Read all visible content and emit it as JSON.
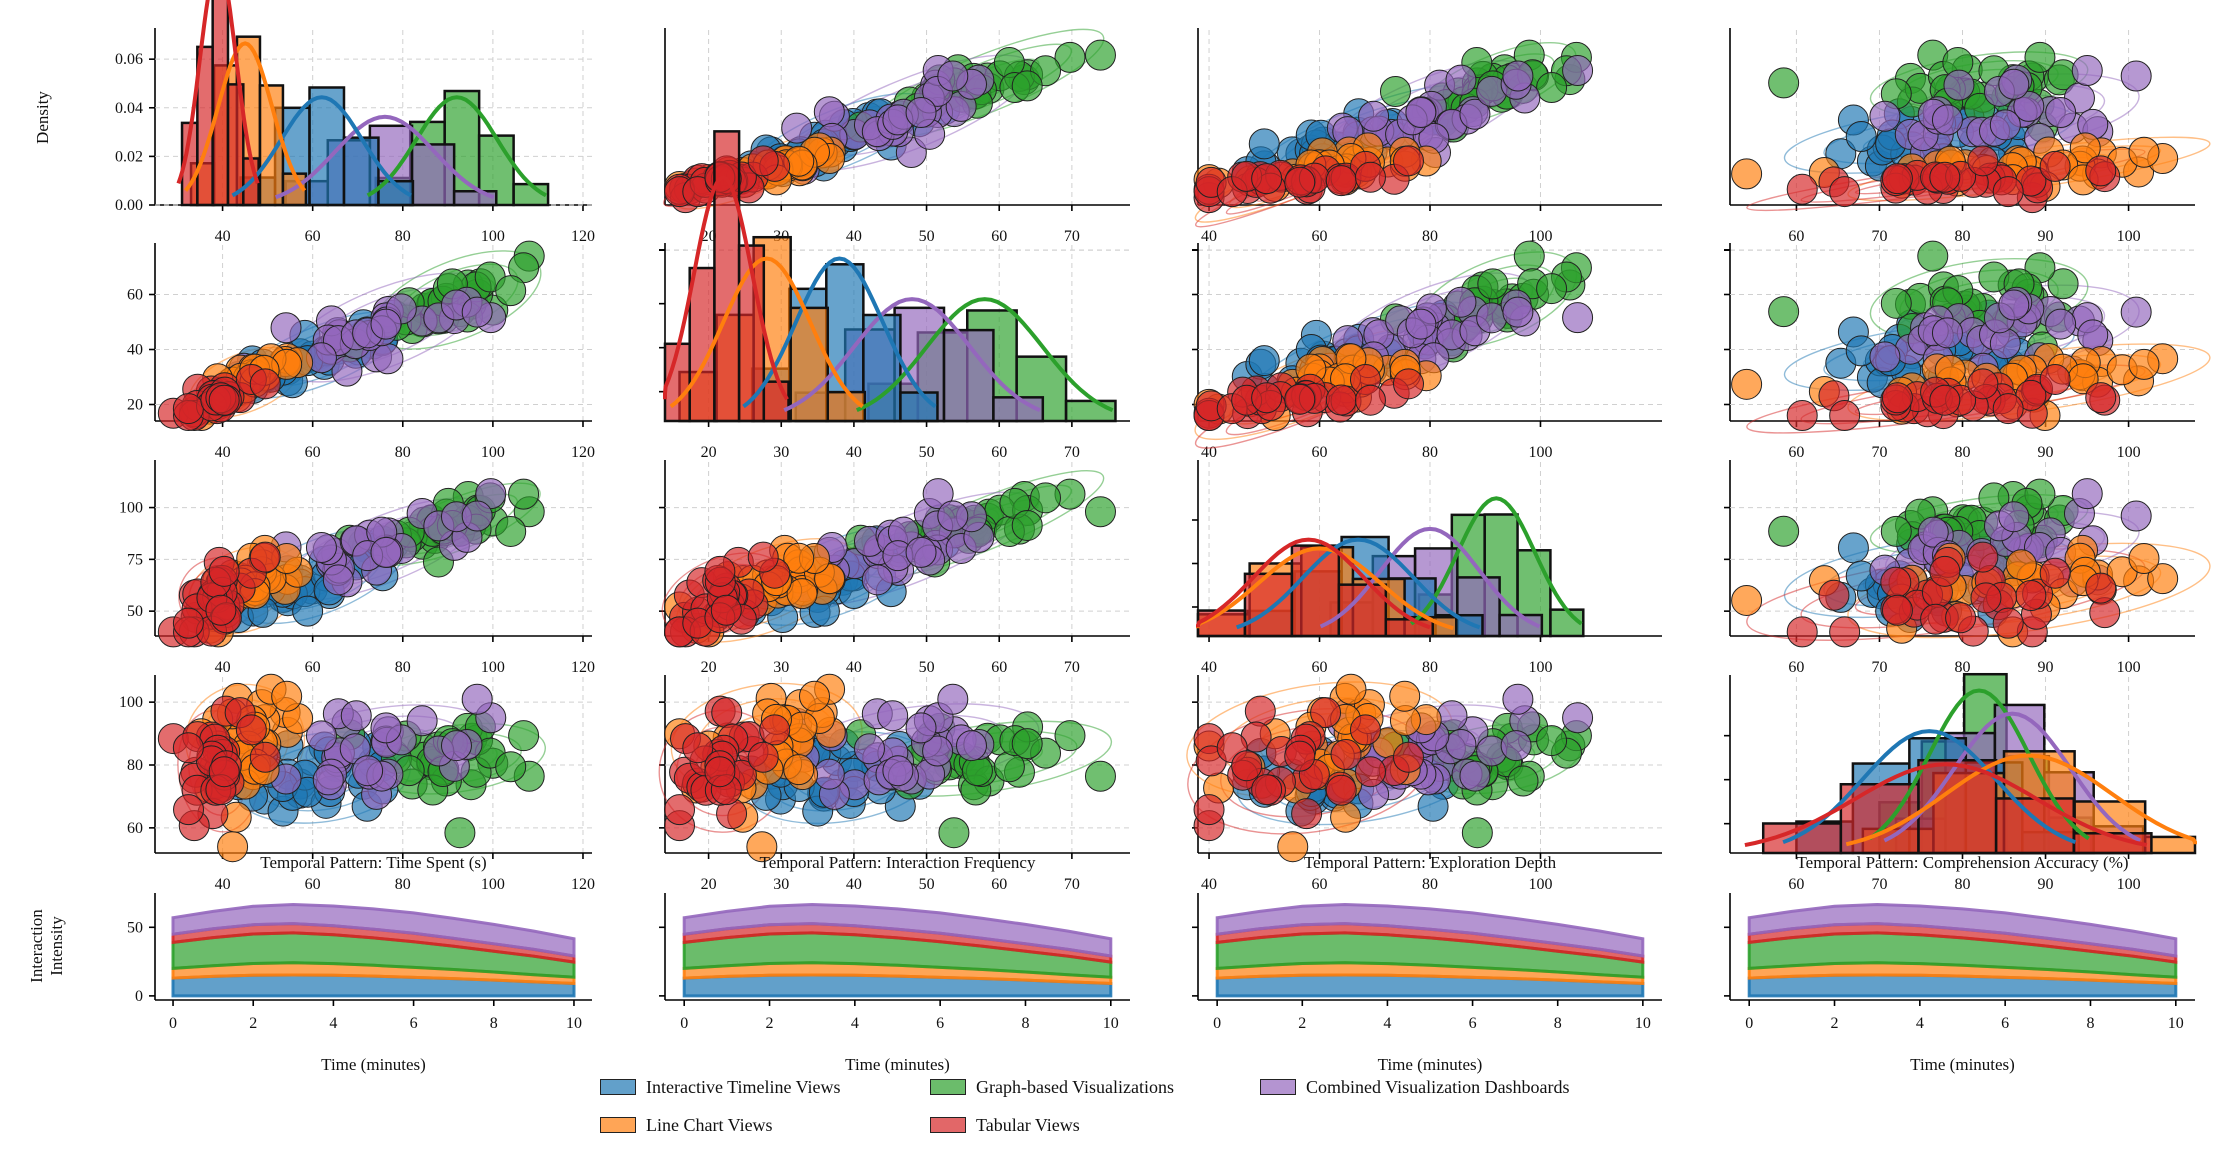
{
  "chart_data": {
    "type": "pairgrid",
    "variables": [
      "Time Spent (s)",
      "Interaction Frequency",
      "Exploration Depth",
      "Comprehension Accuracy (%)"
    ],
    "ranges": {
      "Time Spent (s)": [
        25,
        122
      ],
      "Interaction Frequency": [
        14,
        78
      ],
      "Exploration Depth": [
        38,
        122
      ],
      "Comprehension Accuracy (%)": [
        52,
        108
      ]
    },
    "tick_values": {
      "Time Spent (s)": [
        40,
        60,
        80,
        100,
        120
      ],
      "Interaction Frequency": [
        20,
        30,
        40,
        50,
        60,
        70
      ],
      "Exploration Depth": [
        40,
        60,
        80,
        100
      ],
      "Comprehension Accuracy (%)": [
        60,
        70,
        80,
        90,
        100
      ]
    },
    "row_tick_values": {
      "Time Spent (s)": [
        "0.00",
        "0.02",
        "0.04",
        "0.06"
      ],
      "Interaction Frequency": [
        "20",
        "40",
        "60"
      ],
      "Exploration Depth": [
        "50",
        "75",
        "100"
      ],
      "Comprehension Accuracy (%)": [
        "60",
        "80",
        "100"
      ]
    },
    "density_label": "Density",
    "density_max": 0.072,
    "groups": [
      {
        "name": "Interactive Timeline Views",
        "color": "#1f77b4",
        "mean": [
          62,
          38,
          67,
          76
        ],
        "sd": [
          9,
          6,
          10,
          8
        ]
      },
      {
        "name": "Line Chart Views",
        "color": "#ff7f0e",
        "mean": [
          45,
          28,
          60,
          88
        ],
        "sd": [
          6,
          6,
          11,
          10
        ]
      },
      {
        "name": "Graph-based Visualizations",
        "color": "#2ca02c",
        "mean": [
          92,
          58,
          92,
          82
        ],
        "sd": [
          9,
          8,
          7,
          6
        ]
      },
      {
        "name": "Tabular Views",
        "color": "#d62728",
        "mean": [
          39,
          22,
          58,
          78
        ],
        "sd": [
          4,
          4,
          10,
          11
        ]
      },
      {
        "name": "Combined Visualization Dashboards",
        "color": "#9467bd",
        "mean": [
          76,
          48,
          80,
          86
        ],
        "sd": [
          11,
          8,
          9,
          7
        ]
      }
    ],
    "temporal": {
      "panels": [
        "Temporal Pattern: Time Spent (s)",
        "Temporal Pattern: Interaction Frequency",
        "Temporal Pattern: Exploration Depth",
        "Temporal Pattern: Comprehension Accuracy (%)"
      ],
      "x": [
        0,
        1,
        2,
        3,
        4,
        5,
        6,
        7,
        8,
        9,
        10
      ],
      "x_ticks": [
        0,
        2,
        4,
        6,
        8,
        10
      ],
      "y_ticks": [
        0,
        50
      ],
      "ylim": [
        -3,
        75
      ],
      "xlabel": "Time (minutes)",
      "ylabel_line1": "Interaction",
      "ylabel_line2": "Intensity",
      "series": [
        {
          "name": "Interactive Timeline Views",
          "values": [
            13,
            14.2,
            15,
            15.2,
            15,
            14.4,
            13.5,
            12.6,
            11.5,
            10.2,
            9
          ]
        },
        {
          "name": "Line Chart Views",
          "values": [
            7,
            7.8,
            8.6,
            8.9,
            8.5,
            7.9,
            7.3,
            6.6,
            5.9,
            5.2,
            4.6
          ]
        },
        {
          "name": "Graph-based Visualizations",
          "values": [
            19,
            20.5,
            21.5,
            21.8,
            21,
            20,
            18.7,
            17,
            15.2,
            13.5,
            11
          ]
        },
        {
          "name": "Tabular Views",
          "values": [
            6,
            6.4,
            6.8,
            6.8,
            6.6,
            6.3,
            6.1,
            5.7,
            5.4,
            5,
            4.5
          ]
        },
        {
          "name": "Combined Visualization Dashboards",
          "values": [
            12,
            12.7,
            13.4,
            13.9,
            14.4,
            14.8,
            14.9,
            14.6,
            14.1,
            13.3,
            12.5
          ]
        }
      ]
    }
  },
  "legend": {
    "items": [
      {
        "name": "Interactive Timeline Views",
        "color": "#1f77b4"
      },
      {
        "name": "Graph-based Visualizations",
        "color": "#2ca02c"
      },
      {
        "name": "Combined Visualization Dashboards",
        "color": "#9467bd"
      },
      {
        "name": "Line Chart Views",
        "color": "#ff7f0e"
      },
      {
        "name": "Tabular Views",
        "color": "#d62728"
      }
    ]
  }
}
